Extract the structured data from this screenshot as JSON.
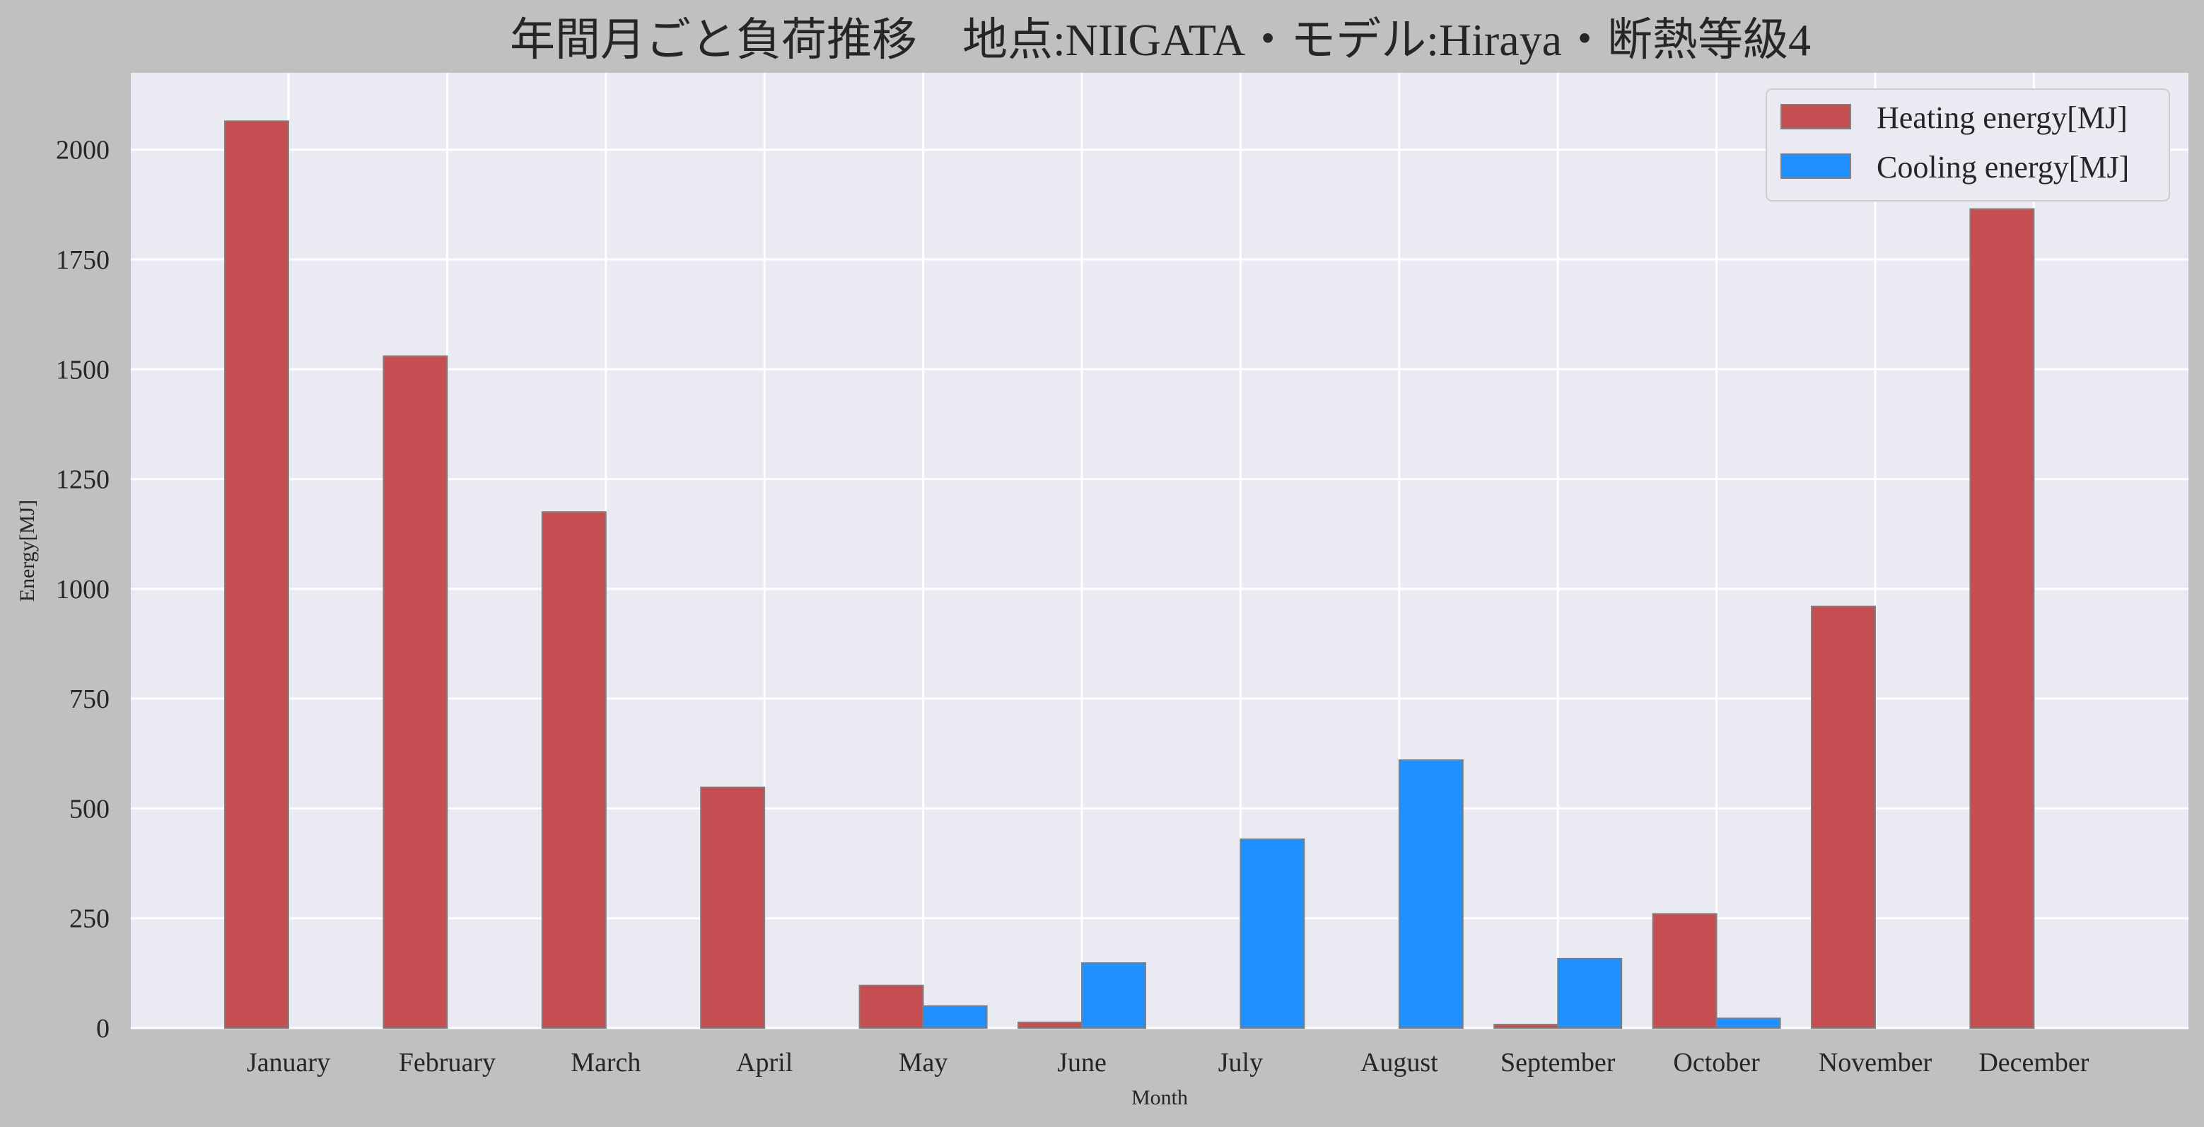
{
  "chart_data": {
    "type": "bar",
    "title": "年間月ごと負荷推移　地点:NIIGATA・モデル:Hiraya・断熱等級4",
    "xlabel": "Month",
    "ylabel": "Energy[MJ]",
    "categories": [
      "January",
      "February",
      "March",
      "April",
      "May",
      "June",
      "July",
      "August",
      "September",
      "October",
      "November",
      "December"
    ],
    "series": [
      {
        "name": "Heating energy[MJ]",
        "color": "#c44e52",
        "values": [
          2065,
          1530,
          1175,
          548,
          97,
          13,
          0,
          0,
          8,
          260,
          960,
          1865
        ]
      },
      {
        "name": "Cooling energy[MJ]",
        "color": "#1e90ff",
        "values": [
          0,
          0,
          0,
          0,
          50,
          148,
          430,
          610,
          158,
          22,
          0,
          0
        ]
      }
    ],
    "ylim": [
      0,
      2175
    ],
    "yticks": [
      0,
      250,
      500,
      750,
      1000,
      1250,
      1500,
      1750,
      2000
    ],
    "grid": true,
    "legend_position": "top-right"
  },
  "colors": {
    "figure_background": "#c0c0c0",
    "plot_background": "#eaeaf2",
    "grid": "#ffffff",
    "bar_edge": "#808080"
  }
}
